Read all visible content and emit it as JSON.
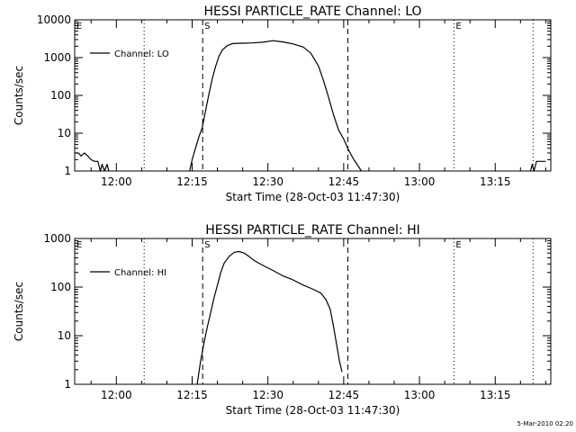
{
  "chart_data": [
    {
      "type": "line",
      "title": "HESSI PARTICLE_RATE Channel: LO",
      "xlabel": "Start Time (28-Oct-03 11:47:30)",
      "ylabel": "Counts/sec",
      "yscale": "log",
      "ylim": [
        1,
        10000
      ],
      "xlim": [
        "11:51:45",
        "13:26:00"
      ],
      "x_ticks": [
        "12:00",
        "12:15",
        "12:30",
        "12:45",
        "13:00",
        "13:15"
      ],
      "y_ticks": [
        "1",
        "10",
        "100",
        "1000",
        "10000"
      ],
      "legend": {
        "position": "top-left",
        "entries": [
          "Channel: LO"
        ]
      },
      "markers": [
        {
          "label": "E",
          "time": "11:51:45",
          "style": "dotted"
        },
        {
          "label": "",
          "time": "12:05:30",
          "style": "dotted"
        },
        {
          "label": "S",
          "time": "12:17:05",
          "style": "dashed"
        },
        {
          "label": "",
          "time": "12:45:50",
          "style": "dashed"
        },
        {
          "label": "E",
          "time": "13:06:50",
          "style": "dotted"
        },
        {
          "label": "",
          "time": "13:22:30",
          "style": "dotted"
        }
      ],
      "series": [
        {
          "name": "Channel: LO",
          "color": "#000000",
          "segments": [
            [
              [
                "11:51:45",
                3
              ],
              [
                "11:52:30",
                3
              ],
              [
                "11:53:00",
                2.5
              ],
              [
                "11:53:40",
                3
              ],
              [
                "11:54:20",
                2.5
              ],
              [
                "11:55:00",
                2
              ],
              [
                "11:55:40",
                1.8
              ],
              [
                "11:56:20",
                1.8
              ],
              [
                "11:56:50",
                1
              ],
              [
                "11:57:10",
                1.5
              ],
              [
                "11:57:40",
                1
              ],
              [
                "11:58:10",
                1.5
              ],
              [
                "11:58:30",
                1
              ]
            ],
            [
              [
                "12:14:30",
                1
              ],
              [
                "12:15:00",
                2
              ],
              [
                "12:15:40",
                4
              ],
              [
                "12:16:20",
                8
              ],
              [
                "12:17:00",
                14
              ],
              [
                "12:17:40",
                40
              ],
              [
                "12:18:20",
                110
              ],
              [
                "12:19:00",
                280
              ],
              [
                "12:19:40",
                600
              ],
              [
                "12:20:20",
                1100
              ],
              [
                "12:21:00",
                1600
              ],
              [
                "12:22:00",
                2100
              ],
              [
                "12:23:00",
                2350
              ],
              [
                "12:25:00",
                2400
              ],
              [
                "12:27:00",
                2450
              ],
              [
                "12:29:00",
                2550
              ],
              [
                "12:31:00",
                2800
              ],
              [
                "12:33:00",
                2600
              ],
              [
                "12:35:00",
                2300
              ],
              [
                "12:37:00",
                1900
              ],
              [
                "12:38:30",
                1300
              ],
              [
                "12:40:00",
                600
              ],
              [
                "12:41:00",
                250
              ],
              [
                "12:42:00",
                90
              ],
              [
                "12:43:00",
                30
              ],
              [
                "12:44:00",
                12
              ],
              [
                "12:45:00",
                7
              ],
              [
                "12:46:00",
                3.5
              ],
              [
                "12:47:00",
                2
              ],
              [
                "12:47:40",
                1.5
              ],
              [
                "12:48:30",
                1
              ]
            ],
            [
              [
                "13:22:00",
                1
              ],
              [
                "13:22:20",
                1.5
              ],
              [
                "13:22:40",
                1
              ],
              [
                "13:23:10",
                1.8
              ],
              [
                "13:25:00",
                1.8
              ]
            ]
          ]
        }
      ]
    },
    {
      "type": "line",
      "title": "HESSI PARTICLE_RATE Channel: HI",
      "xlabel": "Start Time (28-Oct-03 11:47:30)",
      "ylabel": "Counts/sec",
      "yscale": "log",
      "ylim": [
        1,
        1000
      ],
      "xlim": [
        "11:51:45",
        "13:26:00"
      ],
      "x_ticks": [
        "12:00",
        "12:15",
        "12:30",
        "12:45",
        "13:00",
        "13:15"
      ],
      "y_ticks": [
        "1",
        "10",
        "100",
        "1000"
      ],
      "legend": {
        "position": "top-left",
        "entries": [
          "Channel: HI"
        ]
      },
      "markers": [
        {
          "label": "E",
          "time": "11:51:45",
          "style": "dotted"
        },
        {
          "label": "",
          "time": "12:05:30",
          "style": "dotted"
        },
        {
          "label": "S",
          "time": "12:17:05",
          "style": "dashed"
        },
        {
          "label": "",
          "time": "12:45:50",
          "style": "dashed"
        },
        {
          "label": "E",
          "time": "13:06:50",
          "style": "dotted"
        },
        {
          "label": "",
          "time": "13:22:30",
          "style": "dotted"
        }
      ],
      "series": [
        {
          "name": "Channel: HI",
          "color": "#000000",
          "segments": [
            [
              [
                "12:16:00",
                1
              ],
              [
                "12:16:40",
                3
              ],
              [
                "12:17:20",
                7
              ],
              [
                "12:18:00",
                15
              ],
              [
                "12:18:40",
                30
              ],
              [
                "12:19:20",
                60
              ],
              [
                "12:20:00",
                110
              ],
              [
                "12:20:40",
                200
              ],
              [
                "12:21:20",
                310
              ],
              [
                "12:22:20",
                430
              ],
              [
                "12:23:20",
                520
              ],
              [
                "12:24:20",
                540
              ],
              [
                "12:25:20",
                500
              ],
              [
                "12:26:20",
                420
              ],
              [
                "12:27:20",
                350
              ],
              [
                "12:29:00",
                280
              ],
              [
                "12:31:00",
                220
              ],
              [
                "12:33:00",
                170
              ],
              [
                "12:35:00",
                140
              ],
              [
                "12:37:00",
                110
              ],
              [
                "12:39:00",
                90
              ],
              [
                "12:40:30",
                75
              ],
              [
                "12:41:30",
                55
              ],
              [
                "12:42:20",
                35
              ],
              [
                "12:43:00",
                15
              ],
              [
                "12:43:40",
                6
              ],
              [
                "12:44:10",
                3
              ],
              [
                "12:44:40",
                1.8
              ]
            ]
          ]
        }
      ]
    }
  ],
  "footer": {
    "timestamp": "5-Mar-2010 02:20"
  }
}
